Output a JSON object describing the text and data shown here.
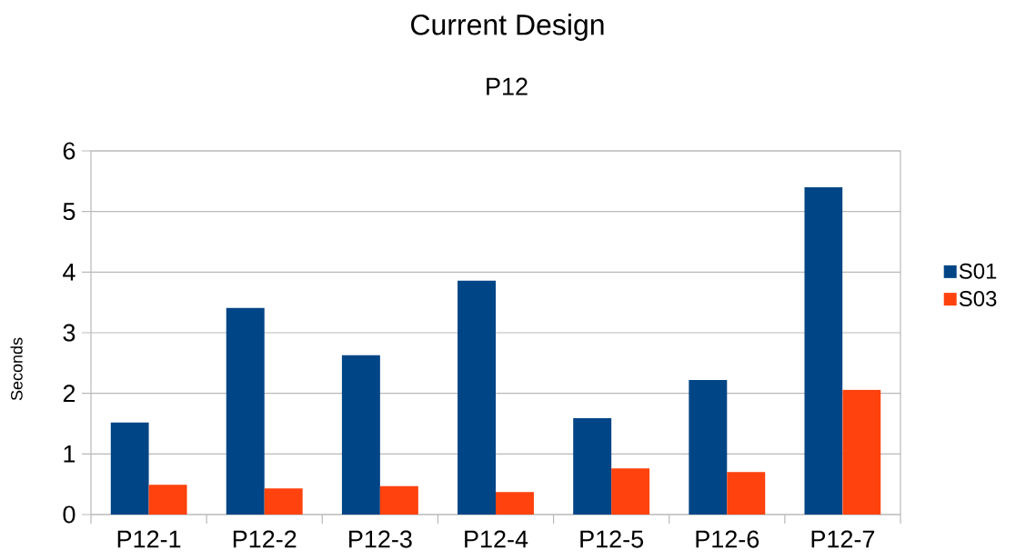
{
  "chart_data": {
    "type": "bar",
    "title": "Current Design",
    "subtitle": "P12",
    "ylabel": "Seconds",
    "categories": [
      "P12-1",
      "P12-2",
      "P12-3",
      "P12-4",
      "P12-5",
      "P12-6",
      "P12-7"
    ],
    "series": [
      {
        "name": "S01",
        "color": "#004586",
        "values": [
          1.52,
          3.41,
          2.63,
          3.86,
          1.59,
          2.22,
          5.4
        ]
      },
      {
        "name": "S03",
        "color": "#ff420e",
        "values": [
          0.49,
          0.43,
          0.47,
          0.37,
          0.76,
          0.7,
          2.06
        ]
      }
    ],
    "ylim": [
      0,
      6
    ],
    "yticks": [
      0,
      1,
      2,
      3,
      4,
      5,
      6
    ],
    "grid": "y",
    "legend": "right"
  }
}
